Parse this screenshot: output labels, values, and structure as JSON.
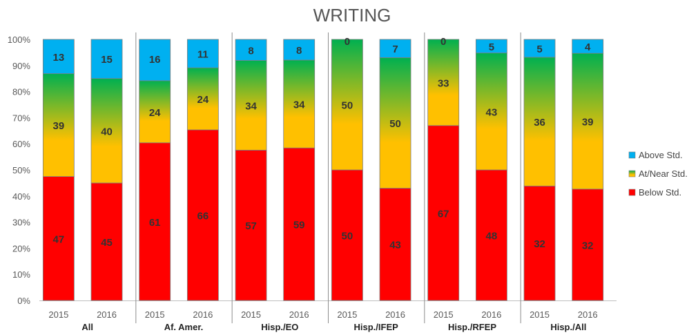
{
  "chart_data": {
    "type": "bar",
    "stacked": "percent",
    "title": "WRITING",
    "y_ticks": [
      "0%",
      "10%",
      "20%",
      "30%",
      "40%",
      "50%",
      "60%",
      "70%",
      "80%",
      "90%",
      "100%"
    ],
    "ylim": [
      0,
      100
    ],
    "legend_position": "right",
    "groups": [
      "All",
      "Af. Amer.",
      "Hisp./EO",
      "Hisp./IFEP",
      "Hisp./RFEP",
      "Hisp./All"
    ],
    "years": [
      "2015",
      "2016"
    ],
    "categories": [
      "All 2015",
      "All 2016",
      "Af. Amer. 2015",
      "Af. Amer. 2016",
      "Hisp./EO 2015",
      "Hisp./EO 2016",
      "Hisp./IFEP 2015",
      "Hisp./IFEP 2016",
      "Hisp./RFEP 2015",
      "Hisp./RFEP 2016",
      "Hisp./All 2015",
      "Hisp./All 2016"
    ],
    "series": [
      {
        "name": "Below Std.",
        "color": "#ff0000",
        "values": [
          47,
          45,
          61,
          66,
          57,
          59,
          50,
          43,
          67,
          48,
          32,
          32
        ]
      },
      {
        "name": "At/Near Std.",
        "color": "#ffc000",
        "values": [
          39,
          40,
          24,
          24,
          34,
          34,
          50,
          50,
          33,
          43,
          36,
          39
        ]
      },
      {
        "name": "Above Std.",
        "color": "#00b0f0",
        "values": [
          13,
          15,
          16,
          11,
          8,
          8,
          0,
          7,
          0,
          5,
          5,
          4
        ]
      }
    ],
    "legend": [
      "Above Std.",
      "At/Near Std.",
      "Below Std."
    ],
    "grid": false
  }
}
